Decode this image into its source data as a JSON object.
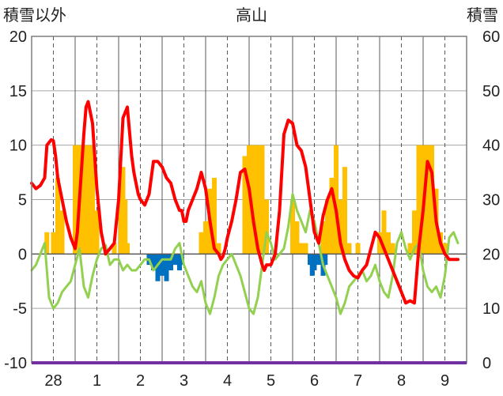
{
  "chart_data": {
    "type": "line",
    "title": "高山",
    "ylabel_left": "積雪以外",
    "ylabel_right": "積雪",
    "ylim_left": [
      -10,
      20
    ],
    "ylim_right": [
      0,
      60
    ],
    "yticks_left": [
      "20",
      "15",
      "10",
      "5",
      "0",
      "-5",
      "-10"
    ],
    "yticks_right": [
      "60",
      "50",
      "40",
      "30",
      "20",
      "10",
      "0"
    ],
    "categories": [
      "28",
      "1",
      "2",
      "3",
      "4",
      "5",
      "6",
      "7",
      "8",
      "9"
    ],
    "grid": true,
    "colors": {
      "temperature": "#ff0000",
      "anomaly": "#92d050",
      "positive_bars": "#ffc000",
      "negative_bars": "#0070c0",
      "bottom_line": "#7030a0",
      "grid": "#555555",
      "frame": "#7f7f7f"
    },
    "series": [
      {
        "role": "temperature",
        "x": [
          0.0,
          0.1,
          0.2,
          0.3,
          0.35,
          0.45,
          0.5,
          0.55,
          0.6,
          0.7,
          0.8,
          0.9,
          1.0,
          1.05,
          1.1,
          1.2,
          1.25,
          1.3,
          1.4,
          1.5,
          1.6,
          1.7,
          1.8,
          1.9,
          2.0,
          2.1,
          2.2,
          2.3,
          2.35,
          2.4,
          2.45,
          2.5,
          2.6,
          2.7,
          2.8,
          2.9,
          3.0,
          3.1,
          3.2,
          3.3,
          3.4,
          3.45,
          3.5,
          3.55,
          3.6,
          3.7,
          3.8,
          3.9,
          4.0,
          4.1,
          4.2,
          4.3,
          4.35,
          4.4,
          4.45,
          4.5,
          4.6,
          4.7,
          4.8,
          4.9,
          5.0,
          5.1,
          5.2,
          5.3,
          5.35,
          5.4,
          5.5,
          5.6,
          5.7,
          5.8,
          5.9,
          6.0,
          6.1,
          6.2,
          6.3,
          6.4,
          6.5,
          6.6,
          6.7,
          6.8,
          6.9,
          7.0,
          7.1,
          7.2,
          7.3,
          7.4,
          7.5,
          7.6,
          7.7,
          7.8,
          7.9,
          8.0,
          8.1,
          8.2,
          8.3,
          8.4,
          8.5,
          8.6,
          8.7,
          8.8,
          8.9,
          9.0,
          9.1,
          9.2,
          9.3,
          9.4,
          9.5,
          9.6,
          9.7,
          9.75,
          9.8
        ],
        "y": [
          6.5,
          6.0,
          6.3,
          7.0,
          10.0,
          10.5,
          10.4,
          9.0,
          7.0,
          5.0,
          3.0,
          1.5,
          0.5,
          2.0,
          5.0,
          11.0,
          13.5,
          14.0,
          12.0,
          6.0,
          2.0,
          0.0,
          0.5,
          1.0,
          5.0,
          12.5,
          13.5,
          9.0,
          7.5,
          6.5,
          5.5,
          5.0,
          4.5,
          5.5,
          8.5,
          8.5,
          8.0,
          7.0,
          6.5,
          5.0,
          4.0,
          4.0,
          3.0,
          3.0,
          4.0,
          5.0,
          6.0,
          7.5,
          6.0,
          3.0,
          0.5,
          0.0,
          -0.5,
          -0.2,
          0.5,
          1.5,
          3.0,
          5.0,
          7.5,
          7.8,
          6.0,
          3.0,
          0.5,
          -1.0,
          -1.5,
          -1.0,
          -1.0,
          0.0,
          4.0,
          11.0,
          12.3,
          12.0,
          10.0,
          9.5,
          8.0,
          5.0,
          2.0,
          1.0,
          3.5,
          5.0,
          6.0,
          4.0,
          1.0,
          -0.5,
          -1.5,
          -2.0,
          -2.2,
          -1.5,
          -1.0,
          0.5,
          2.0,
          1.5,
          0.5,
          -0.5,
          -1.5,
          -2.5,
          -3.5,
          -4.5,
          -4.3,
          -4.5,
          0.5,
          4.0,
          8.5,
          7.5,
          3.0,
          1.0,
          0.0,
          -0.5,
          -0.5,
          -0.5,
          -0.5
        ]
      },
      {
        "role": "anomaly",
        "x": [
          0.0,
          0.1,
          0.2,
          0.3,
          0.4,
          0.5,
          0.6,
          0.7,
          0.8,
          0.9,
          1.0,
          1.1,
          1.2,
          1.3,
          1.4,
          1.5,
          1.6,
          1.7,
          1.8,
          1.9,
          2.0,
          2.1,
          2.2,
          2.3,
          2.4,
          2.5,
          2.6,
          2.7,
          2.8,
          2.9,
          3.0,
          3.1,
          3.2,
          3.3,
          3.4,
          3.5,
          3.6,
          3.7,
          3.8,
          3.9,
          4.0,
          4.1,
          4.2,
          4.3,
          4.4,
          4.5,
          4.6,
          4.7,
          4.8,
          4.9,
          5.0,
          5.1,
          5.2,
          5.3,
          5.4,
          5.5,
          5.6,
          5.7,
          5.8,
          5.9,
          6.0,
          6.1,
          6.2,
          6.3,
          6.4,
          6.5,
          6.6,
          6.7,
          6.8,
          6.9,
          7.0,
          7.1,
          7.2,
          7.3,
          7.4,
          7.5,
          7.6,
          7.7,
          7.8,
          7.9,
          8.0,
          8.1,
          8.2,
          8.3,
          8.4,
          8.5,
          8.6,
          8.7,
          8.8,
          8.9,
          9.0,
          9.1,
          9.2,
          9.3,
          9.4,
          9.5,
          9.6,
          9.7,
          9.8
        ],
        "y": [
          -1.5,
          -1.0,
          0.0,
          1.0,
          -4.0,
          -5.0,
          -4.5,
          -3.5,
          -3.0,
          -2.5,
          -1.0,
          0.5,
          -3.0,
          -4.0,
          -2.0,
          -0.5,
          0.5,
          0.8,
          -1.0,
          -0.5,
          -0.5,
          -1.5,
          -1.0,
          -1.5,
          -1.5,
          -1.0,
          -0.5,
          -0.5,
          -1.5,
          -1.0,
          -0.5,
          -0.5,
          -0.5,
          0.5,
          1.0,
          -1.0,
          -2.0,
          -3.0,
          -3.5,
          -2.5,
          -4.5,
          -5.5,
          -4.0,
          -2.0,
          -1.0,
          -0.5,
          0.0,
          -1.0,
          -2.0,
          -3.5,
          -5.0,
          -5.5,
          -4.0,
          -1.0,
          2.0,
          1.0,
          -0.5,
          0.0,
          0.5,
          2.5,
          5.5,
          4.0,
          3.0,
          2.0,
          4.0,
          3.0,
          1.0,
          -1.0,
          -2.0,
          -3.0,
          -4.0,
          -5.5,
          -4.5,
          -3.0,
          -2.5,
          -2.0,
          -1.5,
          -2.5,
          -2.0,
          -1.0,
          -2.5,
          -3.5,
          -4.0,
          -2.0,
          1.0,
          2.0,
          0.5,
          -0.5,
          0.5,
          1.0,
          -1.5,
          -3.0,
          -3.5,
          -3.0,
          -4.0,
          -2.0,
          1.5,
          2.0,
          1.0
        ]
      },
      {
        "role": "positive_bars",
        "x": [
          0.35,
          0.5,
          0.6,
          0.7,
          1.0,
          1.1,
          1.2,
          1.3,
          1.4,
          1.5,
          1.9,
          2.05,
          2.1,
          2.15,
          2.2,
          3.9,
          4.0,
          4.1,
          4.2,
          4.3,
          4.9,
          5.0,
          5.1,
          5.2,
          5.3,
          5.4,
          6.0,
          6.1,
          6.2,
          6.3,
          6.7,
          6.8,
          6.9,
          7.0,
          7.1,
          7.2,
          7.3,
          7.5,
          8.0,
          8.1,
          8.2,
          8.3,
          8.7,
          8.8,
          8.9,
          9.0,
          9.1,
          9.2,
          9.3,
          9.4,
          9.5
        ],
        "y": [
          2.0,
          2.0,
          7.0,
          4.0,
          10.0,
          10.0,
          10.0,
          10.0,
          10.0,
          4.0,
          1.0,
          7.0,
          8.0,
          5.0,
          1.0,
          2.0,
          3.0,
          6.0,
          7.0,
          1.0,
          9.0,
          10.0,
          10.0,
          10.0,
          10.0,
          5.0,
          5.0,
          3.0,
          1.0,
          1.0,
          3.0,
          5.0,
          7.0,
          10.0,
          5.0,
          8.0,
          1.0,
          1.0,
          2.0,
          4.0,
          2.0,
          1.0,
          1.0,
          4.0,
          10.0,
          10.0,
          10.0,
          10.0,
          6.0,
          2.0,
          1.0
        ]
      },
      {
        "role": "negative_bars",
        "x": [
          2.7,
          2.8,
          2.9,
          3.0,
          3.1,
          3.2,
          3.3,
          3.4,
          3.45,
          6.4,
          6.45,
          6.5,
          6.6,
          6.7,
          6.75
        ],
        "y": [
          -1.0,
          -1.5,
          -2.5,
          -2.0,
          -2.5,
          -1.5,
          -1.0,
          -1.5,
          -1.0,
          -1.0,
          -2.0,
          -1.5,
          -1.0,
          -2.0,
          -1.0
        ]
      }
    ]
  }
}
